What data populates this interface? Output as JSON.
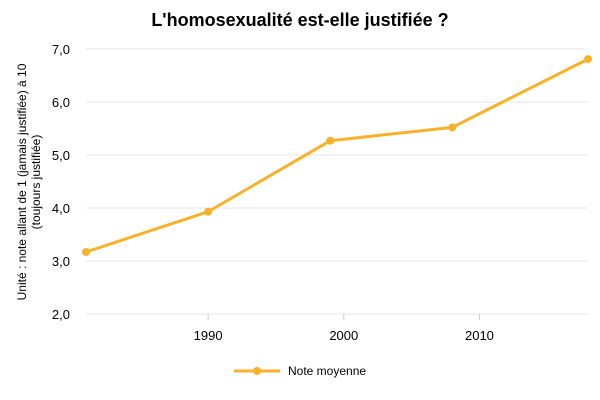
{
  "chart_data": {
    "type": "line",
    "title": "L'homosexualité est-elle justifiée ?",
    "ylabel_lines": [
      "Unité : note allant de 1 (jamais justifiée) à 10",
      "(toujours justifiée)"
    ],
    "xlabel": "",
    "xlim": [
      1981,
      2018
    ],
    "ylim": [
      2.0,
      7.0
    ],
    "x_ticks": [
      1990,
      2000,
      2010
    ],
    "x_tick_labels": [
      "1990",
      "2000",
      "2010"
    ],
    "y_ticks": [
      2.0,
      3.0,
      4.0,
      5.0,
      6.0,
      7.0
    ],
    "y_tick_labels": [
      "2,0",
      "3,0",
      "4,0",
      "5,0",
      "6,0",
      "7,0"
    ],
    "grid": true,
    "legend_position": "bottom",
    "series": [
      {
        "name": "Note moyenne",
        "color": "#F9B12B",
        "points": [
          {
            "x": 1981,
            "y": 3.17
          },
          {
            "x": 1990,
            "y": 3.93
          },
          {
            "x": 1999,
            "y": 5.27
          },
          {
            "x": 2008,
            "y": 5.52
          },
          {
            "x": 2018,
            "y": 6.81
          }
        ]
      }
    ]
  }
}
